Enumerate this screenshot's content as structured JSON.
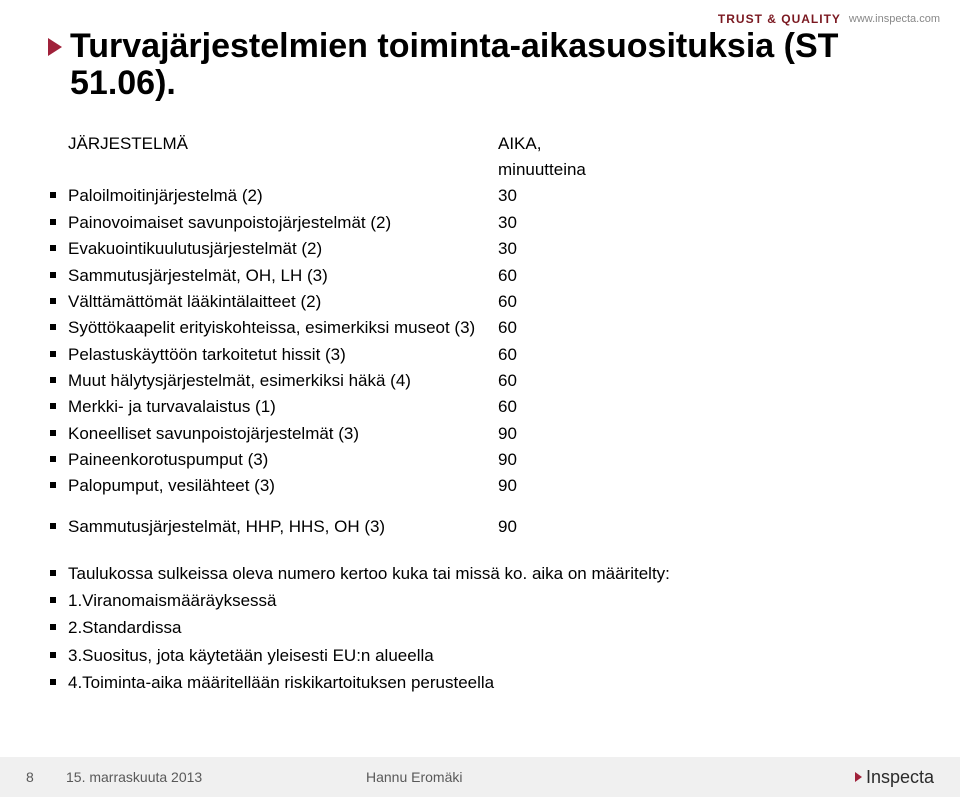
{
  "topbar": {
    "trust_quality": "TRUST & QUALITY",
    "domain": "www.inspecta.com"
  },
  "title": "Turvajärjestelmien toiminta-aikasuosituksia (ST 51.06).",
  "table": {
    "header": {
      "label": "JÄRJESTELMÄ",
      "value": "AIKA, minuutteina"
    },
    "rows": [
      {
        "label": "Paloilmoitinjärjestelmä (2)",
        "value": "30"
      },
      {
        "label": "Painovoimaiset savunpoistojärjestelmät (2)",
        "value": "30"
      },
      {
        "label": "Evakuointikuulutusjärjestelmät (2)",
        "value": "30"
      },
      {
        "label": "Sammutusjärjestelmät, OH, LH (3)",
        "value": "60"
      },
      {
        "label": "Välttämättömät lääkintälaitteet (2)",
        "value": "60"
      },
      {
        "label": "Syöttökaapelit erityiskohteissa, esimerkiksi museot (3)",
        "value": "60"
      },
      {
        "label": "Pelastuskäyttöön tarkoitetut hissit (3)",
        "value": "60"
      },
      {
        "label": "Muut hälytysjärjestelmät, esimerkiksi häkä (4)",
        "value": "60"
      },
      {
        "label": "Merkki- ja turvavalaistus (1)",
        "value": "60"
      },
      {
        "label": "Koneelliset savunpoistojärjestelmät (3)",
        "value": "90"
      },
      {
        "label": "Paineenkorotuspumput (3)",
        "value": "90"
      },
      {
        "label": "Palopumput, vesilähteet (3)",
        "value": "90"
      }
    ],
    "extra_row": {
      "label": "Sammutusjärjestelmät, HHP, HHS, OH (3)",
      "value": "90"
    }
  },
  "footnotes": [
    "Taulukossa sulkeissa oleva numero kertoo kuka tai missä ko. aika on määritelty:",
    "1.Viranomaismääräyksessä",
    "2.Standardissa",
    "3.Suositus, jota käytetään yleisesti EU:n alueella",
    "4.Toiminta-aika määritellään riskikartoituksen perusteella"
  ],
  "footer": {
    "page": "8",
    "date": "15. marraskuuta 2013",
    "author": "Hannu Eromäki",
    "logo": "Inspecta"
  }
}
